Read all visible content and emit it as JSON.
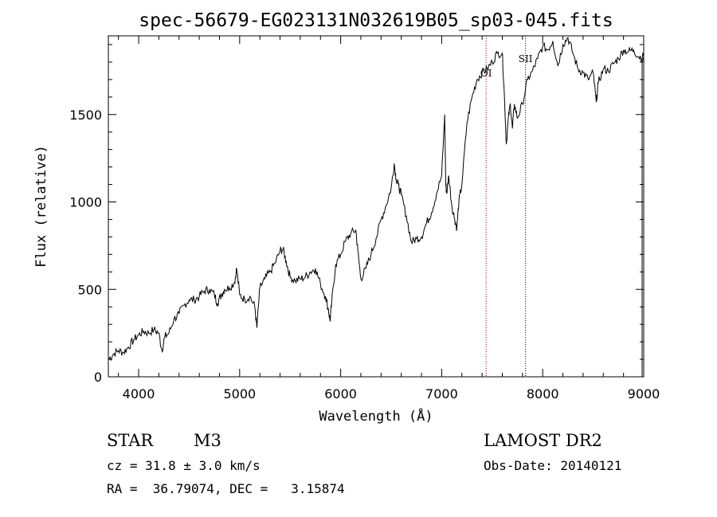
{
  "chart_data": {
    "type": "line",
    "title": "spec-56679-EG023131N032619B05_sp03-045.fits",
    "xlabel": "Wavelength (Å)",
    "ylabel": "Flux (relative)",
    "xlim": [
      3700,
      9000
    ],
    "ylim": [
      0,
      1950
    ],
    "xticks": [
      4000,
      5000,
      6000,
      7000,
      8000,
      9000
    ],
    "yticks": [
      0,
      500,
      1000,
      1500
    ],
    "grid": false,
    "series": [
      {
        "line_color": "#000000",
        "x": [
          3700,
          3750,
          3800,
          3850,
          3900,
          3950,
          4000,
          4050,
          4100,
          4150,
          4200,
          4230,
          4260,
          4300,
          4350,
          4400,
          4450,
          4500,
          4550,
          4600,
          4650,
          4700,
          4750,
          4780,
          4820,
          4850,
          4900,
          4950,
          4970,
          5000,
          5050,
          5100,
          5150,
          5170,
          5200,
          5250,
          5300,
          5350,
          5400,
          5430,
          5460,
          5500,
          5550,
          5600,
          5650,
          5700,
          5750,
          5800,
          5850,
          5880,
          5895,
          5910,
          5950,
          6000,
          6050,
          6100,
          6150,
          6170,
          6200,
          6250,
          6300,
          6350,
          6400,
          6450,
          6500,
          6530,
          6550,
          6570,
          6600,
          6650,
          6700,
          6750,
          6800,
          6850,
          6900,
          6950,
          7000,
          7030,
          7040,
          7050,
          7070,
          7100,
          7130,
          7150,
          7170,
          7200,
          7250,
          7300,
          7350,
          7400,
          7450,
          7500,
          7550,
          7600,
          7620,
          7640,
          7660,
          7680,
          7700,
          7720,
          7750,
          7800,
          7850,
          7900,
          7950,
          8000,
          8050,
          8100,
          8150,
          8200,
          8250,
          8300,
          8350,
          8400,
          8450,
          8500,
          8530,
          8550,
          8600,
          8650,
          8700,
          8750,
          8800,
          8850,
          8900,
          8950,
          9000
        ],
        "values": [
          100,
          130,
          150,
          140,
          170,
          210,
          240,
          260,
          250,
          270,
          250,
          150,
          230,
          250,
          330,
          360,
          410,
          440,
          440,
          460,
          490,
          500,
          470,
          420,
          470,
          500,
          510,
          540,
          620,
          470,
          440,
          460,
          400,
          280,
          510,
          560,
          600,
          650,
          720,
          730,
          660,
          570,
          550,
          560,
          570,
          600,
          620,
          530,
          460,
          380,
          320,
          420,
          640,
          700,
          780,
          820,
          840,
          720,
          560,
          620,
          700,
          790,
          900,
          980,
          1080,
          1220,
          1130,
          1100,
          1040,
          920,
          770,
          790,
          800,
          880,
          940,
          1050,
          1150,
          1500,
          1100,
          1050,
          1150,
          980,
          900,
          850,
          1000,
          1100,
          1450,
          1600,
          1700,
          1740,
          1760,
          1800,
          1850,
          1850,
          1620,
          1330,
          1480,
          1560,
          1420,
          1560,
          1480,
          1560,
          1700,
          1750,
          1820,
          1890,
          1870,
          1920,
          1780,
          1900,
          1940,
          1850,
          1760,
          1740,
          1700,
          1740,
          1570,
          1680,
          1760,
          1750,
          1790,
          1820,
          1870,
          1860,
          1870,
          1830,
          1830
        ]
      }
    ],
    "annotations": [
      {
        "label": "OI",
        "x": 7440,
        "line_color": "#990000",
        "style": "dotted"
      },
      {
        "label": "SII",
        "x": 7830,
        "line_color": "#000000",
        "style": "dotted"
      }
    ]
  },
  "info": {
    "object_class": "STAR",
    "subclass": "M3",
    "survey": "LAMOST DR2",
    "redshift_line": "cz = 31.8 ± 3.0 km/s",
    "obs_date_line": "Obs-Date: 20140121",
    "coords_line": "RA =  36.79074, DEC =   3.15874"
  }
}
